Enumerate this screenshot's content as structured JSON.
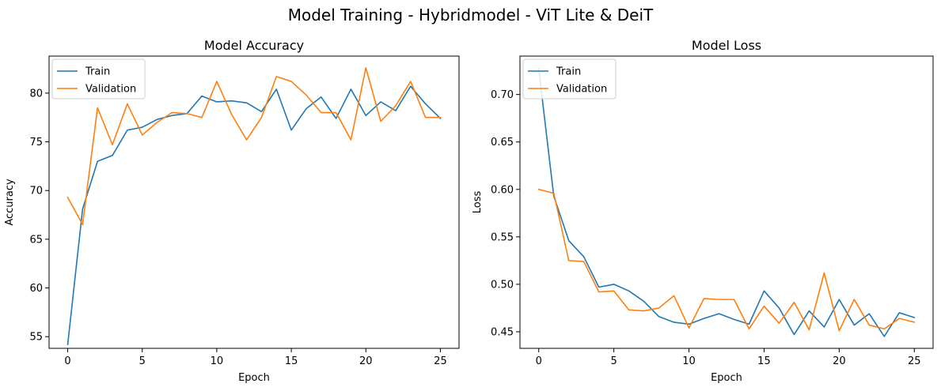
{
  "figure": {
    "suptitle": "Model Training - Hybridmodel - ViT Lite & DeiT"
  },
  "colors": {
    "train": "#1f77b4",
    "validation": "#ff7f0e"
  },
  "chart_data": [
    {
      "type": "line",
      "title": "Model Accuracy",
      "xlabel": "Epoch",
      "ylabel": "Accuracy",
      "xlim": [
        -1.25,
        26.25
      ],
      "ylim": [
        53.8,
        83.8
      ],
      "xticks": [
        0,
        5,
        10,
        15,
        20,
        25
      ],
      "yticks": [
        55,
        60,
        65,
        70,
        75,
        80
      ],
      "legend": "upper-left",
      "grid": false,
      "x": [
        0,
        1,
        2,
        3,
        4,
        5,
        6,
        7,
        8,
        9,
        10,
        11,
        12,
        13,
        14,
        15,
        16,
        17,
        18,
        19,
        20,
        21,
        22,
        23,
        24,
        25
      ],
      "series": [
        {
          "name": "Train",
          "color": "#1f77b4",
          "values": [
            54.2,
            68.1,
            73.0,
            73.6,
            76.2,
            76.5,
            77.3,
            77.7,
            77.9,
            79.7,
            79.1,
            79.2,
            79.0,
            78.1,
            80.4,
            76.2,
            78.4,
            79.6,
            77.4,
            80.4,
            77.7,
            79.1,
            78.2,
            80.7,
            78.9,
            77.4
          ]
        },
        {
          "name": "Validation",
          "color": "#ff7f0e",
          "values": [
            69.3,
            66.5,
            78.5,
            74.7,
            78.9,
            75.7,
            77.0,
            78.0,
            77.9,
            77.5,
            81.2,
            77.8,
            75.2,
            77.5,
            81.7,
            81.2,
            79.8,
            78.0,
            78.0,
            75.2,
            82.6,
            77.1,
            78.7,
            81.2,
            77.5,
            77.5
          ]
        }
      ]
    },
    {
      "type": "line",
      "title": "Model Loss",
      "xlabel": "Epoch",
      "ylabel": "Loss",
      "xlim": [
        -1.25,
        26.25
      ],
      "ylim": [
        0.4325,
        0.7405
      ],
      "xticks": [
        0,
        5,
        10,
        15,
        20,
        25
      ],
      "yticks": [
        0.45,
        0.5,
        0.55,
        0.6,
        0.65,
        0.7
      ],
      "ytick_labels": [
        "0.45",
        "0.50",
        "0.55",
        "0.60",
        "0.65",
        "0.70"
      ],
      "legend": "upper-left",
      "grid": false,
      "x": [
        0,
        1,
        2,
        3,
        4,
        5,
        6,
        7,
        8,
        9,
        10,
        11,
        12,
        13,
        14,
        15,
        16,
        17,
        18,
        19,
        20,
        21,
        22,
        23,
        24,
        25
      ],
      "series": [
        {
          "name": "Train",
          "color": "#1f77b4",
          "values": [
            0.727,
            0.593,
            0.546,
            0.529,
            0.497,
            0.5,
            0.493,
            0.482,
            0.466,
            0.46,
            0.458,
            0.464,
            0.469,
            0.463,
            0.458,
            0.493,
            0.475,
            0.447,
            0.472,
            0.455,
            0.484,
            0.457,
            0.469,
            0.445,
            0.47,
            0.465
          ]
        },
        {
          "name": "Validation",
          "color": "#ff7f0e",
          "values": [
            0.6,
            0.596,
            0.525,
            0.524,
            0.492,
            0.493,
            0.473,
            0.472,
            0.475,
            0.488,
            0.454,
            0.485,
            0.484,
            0.484,
            0.453,
            0.477,
            0.459,
            0.481,
            0.452,
            0.512,
            0.451,
            0.484,
            0.457,
            0.453,
            0.464,
            0.46
          ]
        }
      ]
    }
  ]
}
